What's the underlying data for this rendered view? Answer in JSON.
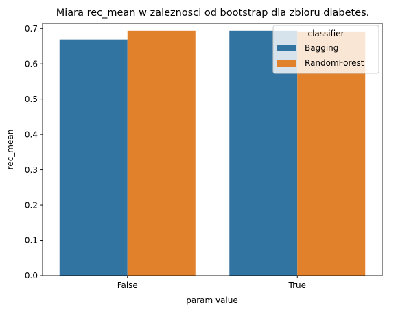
{
  "chart_data": {
    "type": "bar",
    "title": "Miara rec_mean w zaleznosci od bootstrap dla zbioru diabetes.",
    "xlabel": "param value",
    "ylabel": "rec_mean",
    "categories": [
      "False",
      "True"
    ],
    "series": [
      {
        "name": "Bagging",
        "values": [
          0.669,
          0.694
        ],
        "color": "#3274a1"
      },
      {
        "name": "RandomForest",
        "values": [
          0.694,
          0.692
        ],
        "color": "#e1812c"
      }
    ],
    "ylim": [
      0,
      0.715
    ],
    "yticks": [
      0.0,
      0.1,
      0.2,
      0.3,
      0.4,
      0.5,
      0.6,
      0.7
    ],
    "ytick_labels": [
      "0.0",
      "0.1",
      "0.2",
      "0.3",
      "0.4",
      "0.5",
      "0.6",
      "0.7"
    ],
    "legend": {
      "title": "classifier",
      "placement": "top-right"
    },
    "grid": false
  }
}
